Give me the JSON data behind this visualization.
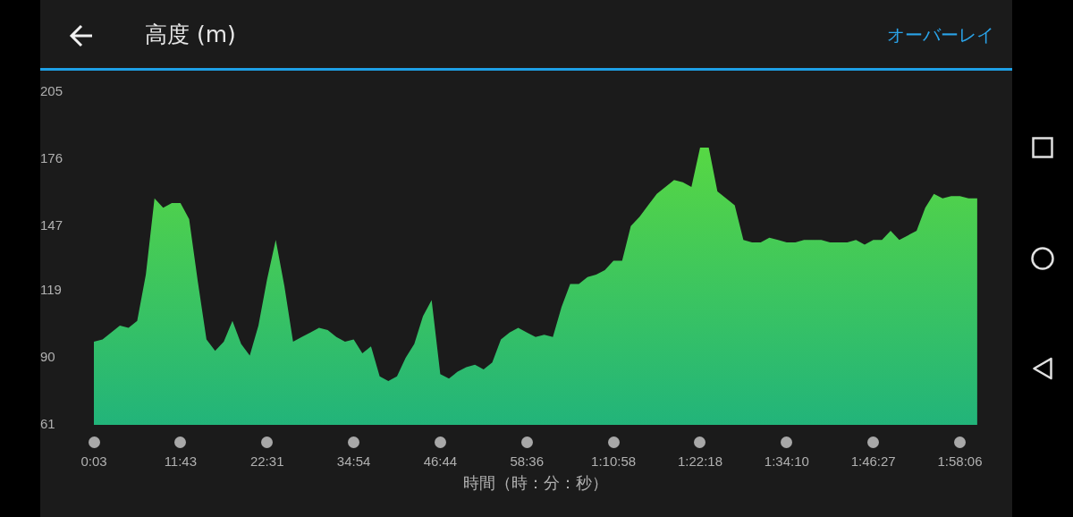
{
  "chart_data": {
    "type": "area",
    "title": "高度 (m)",
    "xlabel": "時間（時：分：秒）",
    "annotations": [
      "オーバーレイ"
    ],
    "categories": [
      "0:03",
      null,
      null,
      null,
      null,
      null,
      null,
      null,
      null,
      null,
      "11:43",
      null,
      null,
      null,
      null,
      null,
      null,
      null,
      null,
      null,
      "22:31",
      null,
      null,
      null,
      null,
      null,
      null,
      null,
      null,
      null,
      "34:54",
      null,
      null,
      null,
      null,
      null,
      null,
      null,
      null,
      null,
      "46:44",
      null,
      null,
      null,
      null,
      null,
      null,
      null,
      null,
      null,
      "58:36",
      null,
      null,
      null,
      null,
      null,
      null,
      null,
      null,
      null,
      "1:10:58",
      null,
      null,
      null,
      null,
      null,
      null,
      null,
      null,
      null,
      "1:22:18",
      null,
      null,
      null,
      null,
      null,
      null,
      null,
      null,
      null,
      "1:34:10",
      null,
      null,
      null,
      null,
      null,
      null,
      null,
      null,
      null,
      "1:46:27",
      null,
      null,
      null,
      null,
      null,
      null,
      null,
      null,
      null,
      "1:58:06",
      null,
      null
    ],
    "series": [
      {
        "color": "#4ccf4f",
        "values": [
          97,
          98,
          101,
          104,
          103,
          106,
          126,
          159,
          155,
          157,
          157,
          150,
          123,
          98,
          93,
          97,
          106,
          96,
          91,
          104,
          124,
          141,
          121,
          97,
          99,
          101,
          103,
          102,
          99,
          97,
          98,
          92,
          95,
          82,
          80,
          82,
          90,
          96,
          108,
          115,
          83,
          81,
          84,
          86,
          87,
          85,
          88,
          98,
          101,
          103,
          101,
          99,
          100,
          99,
          112,
          122,
          122,
          125,
          126,
          128,
          132,
          132,
          147,
          151,
          156,
          161,
          164,
          167,
          166,
          164,
          181,
          181,
          162,
          159,
          156,
          141,
          140,
          140,
          142,
          141,
          140,
          140,
          141,
          141,
          141,
          140,
          140,
          140,
          141,
          139,
          141,
          141,
          145,
          141,
          143,
          145,
          155,
          161,
          159,
          160,
          160,
          159,
          159
        ]
      }
    ],
    "ylim": [
      61,
      205
    ],
    "yticks": [
      61,
      90,
      119,
      147,
      176,
      205
    ],
    "grid": false,
    "legend": false,
    "marker": "none"
  }
}
